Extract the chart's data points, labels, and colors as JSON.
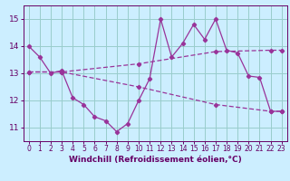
{
  "xlabel": "Windchill (Refroidissement éolien,°C)",
  "background_color": "#cceeff",
  "grid_color": "#99cccc",
  "line_color": "#993399",
  "xlim": [
    -0.5,
    23.5
  ],
  "ylim": [
    10.5,
    15.5
  ],
  "xticks": [
    0,
    1,
    2,
    3,
    4,
    5,
    6,
    7,
    8,
    9,
    10,
    11,
    12,
    13,
    14,
    15,
    16,
    17,
    18,
    19,
    20,
    21,
    22,
    23
  ],
  "yticks": [
    11,
    12,
    13,
    14,
    15
  ],
  "line1_x": [
    0,
    1,
    2,
    3,
    4,
    5,
    6,
    7,
    8,
    9,
    10,
    11,
    12,
    13,
    14,
    15,
    16,
    17,
    18,
    19,
    20,
    21,
    22,
    23
  ],
  "line1_y": [
    14.0,
    13.6,
    13.0,
    13.1,
    12.1,
    11.85,
    11.4,
    11.25,
    10.85,
    11.15,
    12.0,
    12.8,
    15.0,
    13.6,
    14.1,
    14.8,
    14.25,
    15.0,
    13.85,
    13.75,
    12.9,
    12.85,
    11.6,
    11.6
  ],
  "line2_x": [
    0,
    3,
    10,
    17,
    22,
    23
  ],
  "line2_y": [
    13.05,
    13.05,
    13.35,
    13.8,
    13.85,
    13.85
  ],
  "line3_x": [
    0,
    3,
    10,
    17,
    22,
    23
  ],
  "line3_y": [
    13.05,
    13.05,
    12.5,
    11.85,
    11.6,
    11.6
  ],
  "tick_fontsize": 5.5,
  "xlabel_fontsize": 6.5
}
